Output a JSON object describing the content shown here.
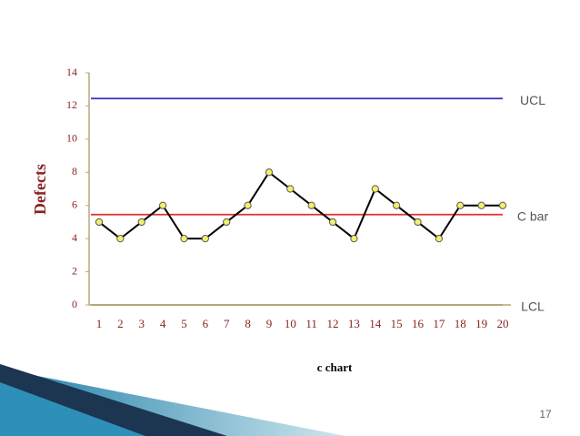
{
  "chart_data": {
    "type": "line",
    "title": "c chart",
    "y_label": "Defects",
    "categories": [
      "1",
      "2",
      "3",
      "4",
      "5",
      "6",
      "7",
      "8",
      "9",
      "10",
      "11",
      "12",
      "13",
      "14",
      "15",
      "16",
      "17",
      "18",
      "19",
      "20"
    ],
    "values": [
      5,
      4,
      5,
      6,
      4,
      4,
      5,
      6,
      8,
      7,
      6,
      5,
      4,
      7,
      6,
      5,
      4,
      6,
      6,
      6
    ],
    "color": "#000000",
    "marker_color": "#f2f26a",
    "ylim": [
      0,
      14
    ],
    "yticks": [
      0,
      2,
      4,
      6,
      8,
      10,
      12,
      14
    ],
    "control_lines": [
      {
        "label": "UCL",
        "value": 12.45,
        "color": "#3a2fc0"
      },
      {
        "label": "C bar",
        "value": 5.45,
        "color": "#e03232"
      },
      {
        "label": "LCL",
        "value": 0,
        "color": "#b0a070"
      }
    ]
  },
  "slide": {
    "page_number": "17"
  }
}
